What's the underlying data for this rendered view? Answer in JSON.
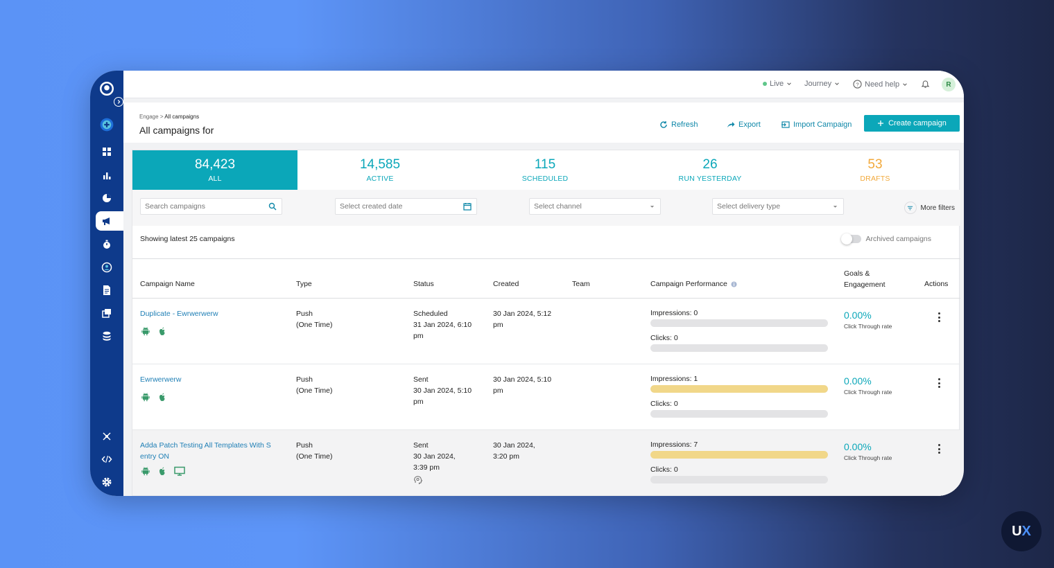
{
  "topbar": {
    "live": "Live",
    "journey": "Journey",
    "help": "Need help",
    "avatar_initial": "R"
  },
  "header": {
    "breadcrumb_root": "Engage",
    "breadcrumb_sep": ">",
    "breadcrumb_current": "All campaigns",
    "title": "All campaigns for",
    "refresh": "Refresh",
    "export": "Export",
    "import": "Import Campaign",
    "create": "Create campaign"
  },
  "stats": [
    {
      "value": "84,423",
      "label": "ALL"
    },
    {
      "value": "14,585",
      "label": "ACTIVE"
    },
    {
      "value": "115",
      "label": "SCHEDULED"
    },
    {
      "value": "26",
      "label": "RUN YESTERDAY"
    },
    {
      "value": "53",
      "label": "DRAFTS"
    }
  ],
  "filters": {
    "search_placeholder": "Search campaigns",
    "date_placeholder": "Select created date",
    "channel_placeholder": "Select channel",
    "delivery_placeholder": "Select delivery type",
    "more_filters": "More filters"
  },
  "list": {
    "showing": "Showing latest 25 campaigns",
    "archived": "Archived campaigns"
  },
  "table": {
    "headers": {
      "name": "Campaign Name",
      "type": "Type",
      "status": "Status",
      "created": "Created",
      "team": "Team",
      "performance": "Campaign Performance",
      "goals_1": "Goals &",
      "goals_2": "Engagement",
      "actions": "Actions"
    },
    "rows": [
      {
        "name_1": "Duplicate - Ewrwerwerw",
        "name_2": "",
        "type_1": "Push",
        "type_2": "(One Time)",
        "status_1": "Scheduled",
        "status_2": "31 Jan 2024, 6:10",
        "status_3": "pm",
        "created_1": "30 Jan 2024, 5:12",
        "created_2": "pm",
        "impressions": "Impressions: 0",
        "clicks": "Clicks: 0",
        "impressions_fill": 0,
        "goal_pct": "0.00%",
        "goal_label": "Click Through rate"
      },
      {
        "name_1": "Ewrwerwerw",
        "name_2": "",
        "type_1": "Push",
        "type_2": "(One Time)",
        "status_1": "Sent",
        "status_2": "30 Jan 2024, 5:10",
        "status_3": "pm",
        "created_1": "30 Jan 2024, 5:10",
        "created_2": "pm",
        "impressions": "Impressions: 1",
        "clicks": "Clicks: 0",
        "impressions_fill": 1,
        "goal_pct": "0.00%",
        "goal_label": "Click Through rate"
      },
      {
        "name_1": "Adda Patch Testing All Templates With S",
        "name_2": "entry ON",
        "type_1": "Push",
        "type_2": "(One Time)",
        "status_1": "Sent",
        "status_2": "30 Jan 2024,",
        "status_3": "3:39 pm",
        "created_1": "30 Jan 2024,",
        "created_2": "3:20 pm",
        "impressions": "Impressions: 7",
        "clicks": "Clicks: 0",
        "impressions_fill": 1,
        "goal_pct": "0.00%",
        "goal_label": "Click Through rate"
      }
    ]
  },
  "badge": {
    "u": "U",
    "x": "X"
  },
  "colors": {
    "teal": "#0ba7b9",
    "sidebar": "#0e3a8b",
    "drafts": "#f2a93b",
    "bar_fill": "#f1d789"
  }
}
